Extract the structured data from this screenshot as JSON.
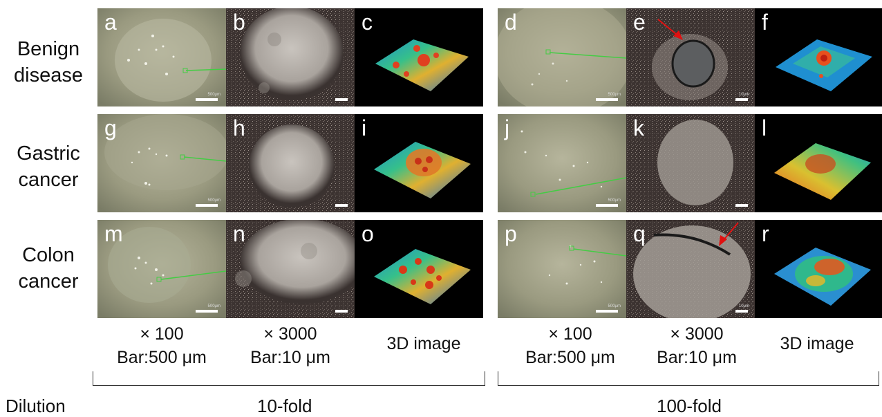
{
  "rows": [
    {
      "label_line1": "Benign",
      "label_line2": "disease"
    },
    {
      "label_line1": "Gastric",
      "label_line2": "cancer"
    },
    {
      "label_line1": "Colon",
      "label_line2": "cancer"
    }
  ],
  "panels": {
    "a": "a",
    "b": "b",
    "c": "c",
    "d": "d",
    "e": "e",
    "f": "f",
    "g": "g",
    "h": "h",
    "i": "i",
    "j": "j",
    "k": "k",
    "l": "l",
    "m": "m",
    "n": "n",
    "o": "o",
    "p": "p",
    "q": "q",
    "r": "r"
  },
  "columns": [
    {
      "line1": "× 100",
      "line2": "Bar:500 μm"
    },
    {
      "line1": "× 3000",
      "line2": "Bar:10 μm"
    },
    {
      "line1": "3D image"
    },
    {
      "line1": "× 100",
      "line2": "Bar:500 μm"
    },
    {
      "line1": "× 3000",
      "line2": "Bar:10 μm"
    },
    {
      "line1": "3D image"
    }
  ],
  "dilution": {
    "label": "Dilution",
    "group1": "10-fold",
    "group2": "100-fold"
  },
  "scale_texts": {
    "s500": "500μm",
    "s10": "10μm"
  },
  "colors": {
    "micro_bg": "#8a8a6e",
    "sem_bg": "#3a3230",
    "sem_spot": "#b5b0aa",
    "black": "#000000",
    "arrow": "#e01010",
    "link_line": "#44cc44"
  }
}
